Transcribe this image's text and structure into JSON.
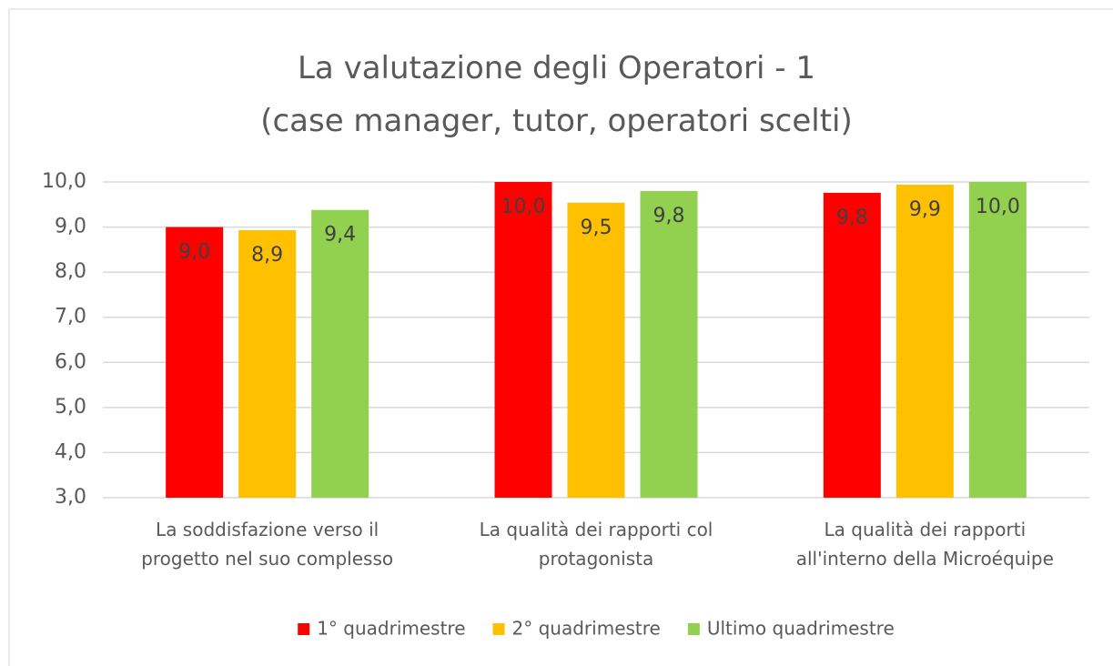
{
  "chart_data": {
    "type": "bar",
    "title": "La valutazione degli Operatori - 1\n(case manager, tutor, operatori scelti)",
    "categories": [
      "La soddisfazione verso il\nprogetto nel suo complesso",
      "La qualità dei rapporti col\nprotagonista",
      "La qualità dei rapporti\nall'interno della Microéquipe"
    ],
    "series": [
      {
        "name": "1° quadrimestre",
        "color": "#ff0000",
        "values": [
          9.0,
          10.0,
          9.76
        ],
        "value_labels": [
          "9,0",
          "10,0",
          "9,8"
        ]
      },
      {
        "name": "2° quadrimestre",
        "color": "#ffc000",
        "values": [
          8.93,
          9.54,
          9.94
        ],
        "value_labels": [
          "8,9",
          "9,5",
          "9,9"
        ]
      },
      {
        "name": "Ultimo quadrimestre",
        "color": "#92d050",
        "values": [
          9.38,
          9.8,
          10.0
        ],
        "value_labels": [
          "9,4",
          "9,8",
          "10,0"
        ]
      }
    ],
    "ylim": [
      3,
      10
    ],
    "yticks": [
      {
        "value": 3,
        "label": "3,0"
      },
      {
        "value": 4,
        "label": "4,0"
      },
      {
        "value": 5,
        "label": "5,0"
      },
      {
        "value": 6,
        "label": "6,0"
      },
      {
        "value": 7,
        "label": "7,0"
      },
      {
        "value": 8,
        "label": "8,0"
      },
      {
        "value": 9,
        "label": "9,0"
      },
      {
        "value": 10,
        "label": "10,0"
      }
    ],
    "grid": true,
    "legend": "bottom"
  }
}
